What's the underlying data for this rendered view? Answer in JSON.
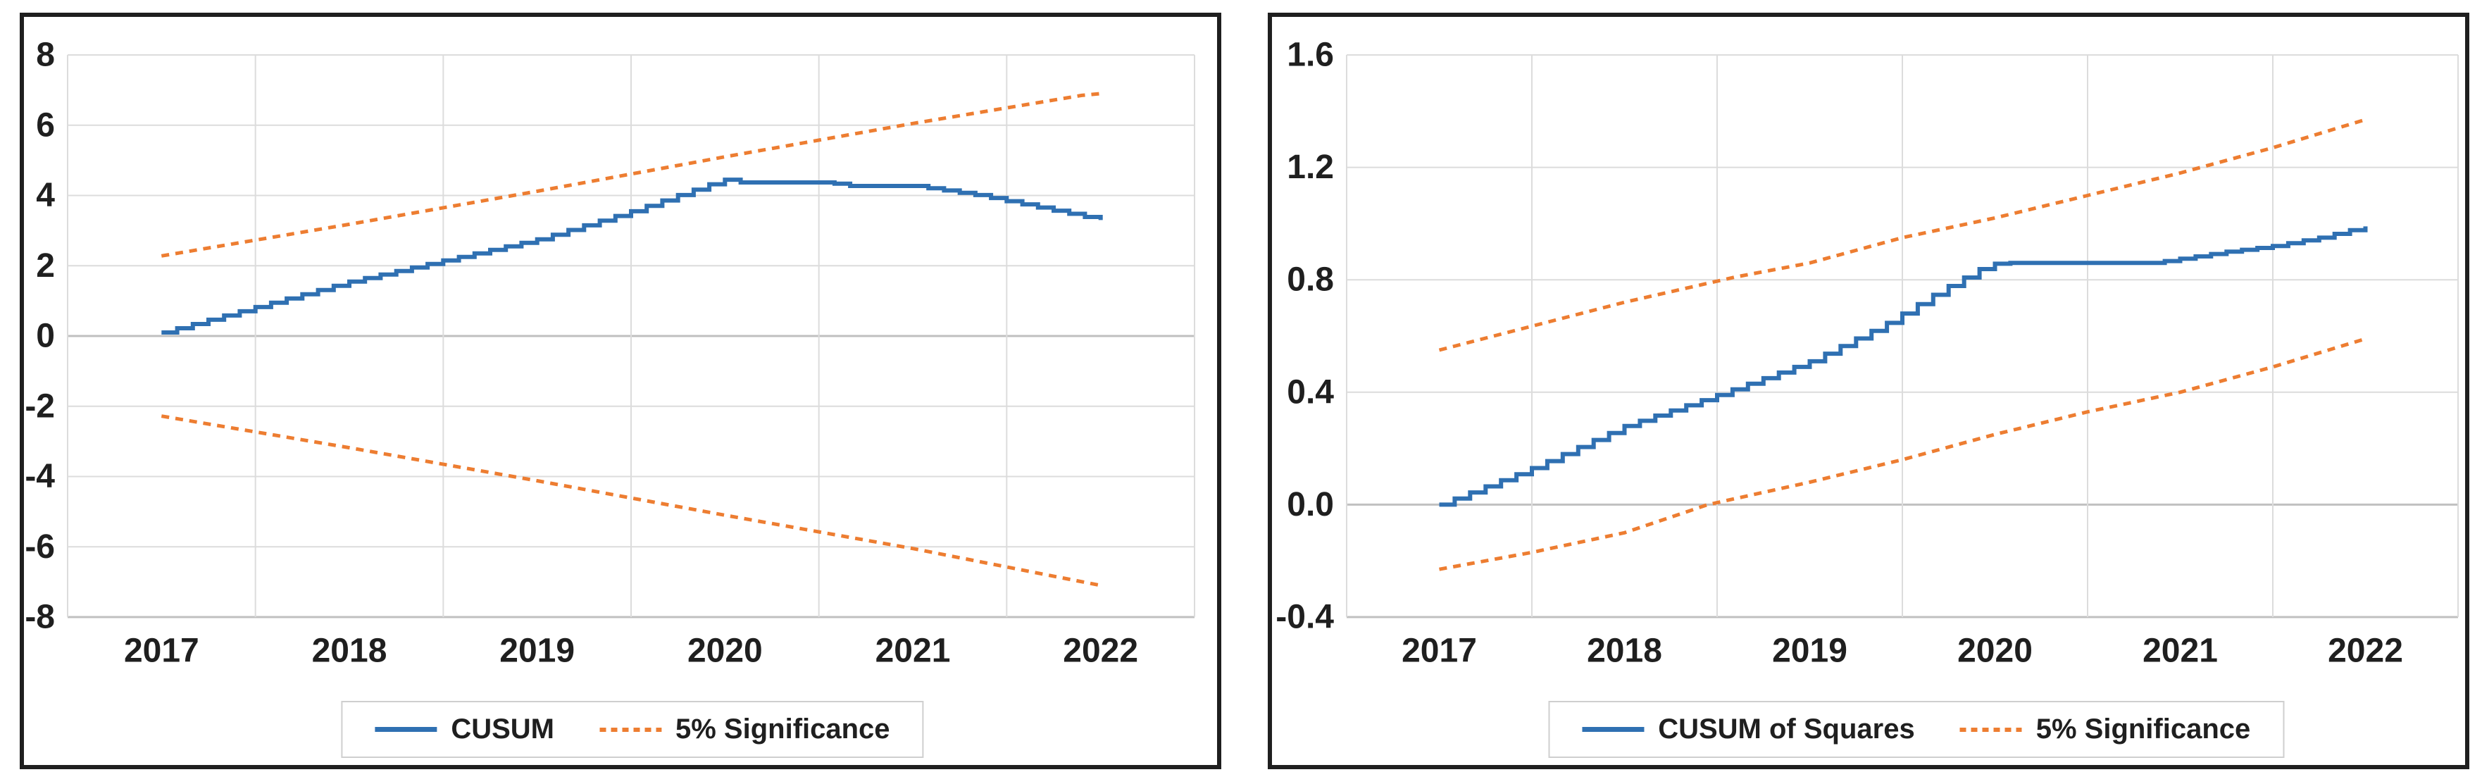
{
  "figure": {
    "background": "#ffffff",
    "panel_border_color": "#1f1f1f"
  },
  "chart_data": [
    {
      "name": "cusum-stability-test",
      "type": "line",
      "title": "",
      "xlabel": "",
      "ylabel": "",
      "x_ticks": [
        "2017",
        "2018",
        "2019",
        "2020",
        "2021",
        "2022"
      ],
      "x_domain": [
        2016.5,
        2022.5
      ],
      "y_range": [
        -8,
        8
      ],
      "y_ticks": [
        {
          "label": "8",
          "value": 8
        },
        {
          "label": "6",
          "value": 6
        },
        {
          "label": "4",
          "value": 4
        },
        {
          "label": "2",
          "value": 2
        },
        {
          "label": "0",
          "value": 0
        },
        {
          "label": "-2",
          "value": -2
        },
        {
          "label": "-4",
          "value": -4
        },
        {
          "label": "-6",
          "value": -6
        },
        {
          "label": "-8",
          "value": -8
        }
      ],
      "zero_line": 0,
      "grid": true,
      "legend_position": "bottom-center",
      "legend": [
        "CUSUM",
        "5% Significance"
      ],
      "colors": {
        "line": "#2f70b2",
        "band": "#ed7d31",
        "grid": "#dcdcdc",
        "axis": "#c0c0c0",
        "text": "#1f1f1f"
      },
      "series": [
        {
          "name": "CUSUM",
          "style": "stair",
          "width": 6,
          "color_key": "line",
          "points": [
            [
              2017,
              0.1
            ],
            [
              2018,
              1.55
            ],
            [
              2019,
              2.75
            ],
            [
              2019.5,
              3.55
            ],
            [
              2019.95,
              4.38
            ],
            [
              2020,
              4.45
            ],
            [
              2020.07,
              4.37
            ],
            [
              2020.55,
              4.37
            ],
            [
              2020.65,
              4.27
            ],
            [
              2021.0,
              4.27
            ],
            [
              2021.35,
              4.0
            ],
            [
              2021.7,
              3.62
            ],
            [
              2022,
              3.3
            ]
          ]
        },
        {
          "name": "5% Significance (upper)",
          "style": "dashed",
          "width": 5,
          "color_key": "band",
          "points": [
            [
              2017,
              2.28
            ],
            [
              2018,
              3.18
            ],
            [
              2019,
              4.12
            ],
            [
              2020,
              5.1
            ],
            [
              2021,
              6.05
            ],
            [
              2021.9,
              6.85
            ],
            [
              2022,
              6.9
            ]
          ]
        },
        {
          "name": "5% Significance (lower)",
          "style": "dashed",
          "width": 5,
          "color_key": "band",
          "points": [
            [
              2017,
              -2.28
            ],
            [
              2018,
              -3.18
            ],
            [
              2019,
              -4.12
            ],
            [
              2020,
              -5.1
            ],
            [
              2021,
              -6.05
            ],
            [
              2022,
              -7.1
            ]
          ]
        }
      ]
    },
    {
      "name": "cusum-of-squares-stability-test",
      "type": "line",
      "title": "",
      "xlabel": "",
      "ylabel": "",
      "x_ticks": [
        "2017",
        "2018",
        "2019",
        "2020",
        "2021",
        "2022"
      ],
      "x_domain": [
        2016.5,
        2022.5
      ],
      "y_range": [
        -0.4,
        1.6
      ],
      "y_ticks": [
        {
          "label": "1.6",
          "value": 1.6
        },
        {
          "label": "1.2",
          "value": 1.2
        },
        {
          "label": "0.8",
          "value": 0.8
        },
        {
          "label": "0.4",
          "value": 0.4
        },
        {
          "label": "0.0",
          "value": 0.0
        },
        {
          "label": "-0.4",
          "value": -0.4
        }
      ],
      "zero_line": 0,
      "grid": true,
      "legend_position": "bottom-center",
      "legend": [
        "CUSUM of Squares",
        "5% Significance"
      ],
      "colors": {
        "line": "#2f70b2",
        "band": "#ed7d31",
        "grid": "#dcdcdc",
        "axis": "#c0c0c0",
        "text": "#1f1f1f"
      },
      "series": [
        {
          "name": "CUSUM of Squares",
          "style": "stair",
          "width": 6,
          "color_key": "line",
          "points": [
            [
              2017,
              0.0
            ],
            [
              2017.5,
              0.13
            ],
            [
              2018,
              0.28
            ],
            [
              2018.5,
              0.39
            ],
            [
              2019,
              0.51
            ],
            [
              2019.4,
              0.64
            ],
            [
              2019.7,
              0.76
            ],
            [
              2019.95,
              0.85
            ],
            [
              2020.02,
              0.86
            ],
            [
              2020.85,
              0.86
            ],
            [
              2021.0,
              0.875
            ],
            [
              2021.25,
              0.9
            ],
            [
              2021.5,
              0.92
            ],
            [
              2021.75,
              0.95
            ],
            [
              2022,
              0.99
            ]
          ]
        },
        {
          "name": "5% Significance (upper)",
          "style": "dashed",
          "width": 5,
          "color_key": "band",
          "points": [
            [
              2017,
              0.55
            ],
            [
              2018,
              0.72
            ],
            [
              2018.6,
              0.81
            ],
            [
              2019,
              0.86
            ],
            [
              2019.5,
              0.95
            ],
            [
              2020,
              1.02
            ],
            [
              2020.5,
              1.1
            ],
            [
              2021,
              1.18
            ],
            [
              2021.5,
              1.27
            ],
            [
              2022,
              1.37
            ]
          ]
        },
        {
          "name": "5% Significance (lower)",
          "style": "dashed",
          "width": 5,
          "color_key": "band",
          "points": [
            [
              2017,
              -0.23
            ],
            [
              2017.5,
              -0.17
            ],
            [
              2018,
              -0.1
            ],
            [
              2018.45,
              0.0
            ],
            [
              2019,
              0.08
            ],
            [
              2019.5,
              0.16
            ],
            [
              2020,
              0.25
            ],
            [
              2020.5,
              0.33
            ],
            [
              2021,
              0.4
            ],
            [
              2021.5,
              0.49
            ],
            [
              2022,
              0.59
            ]
          ]
        }
      ]
    }
  ]
}
